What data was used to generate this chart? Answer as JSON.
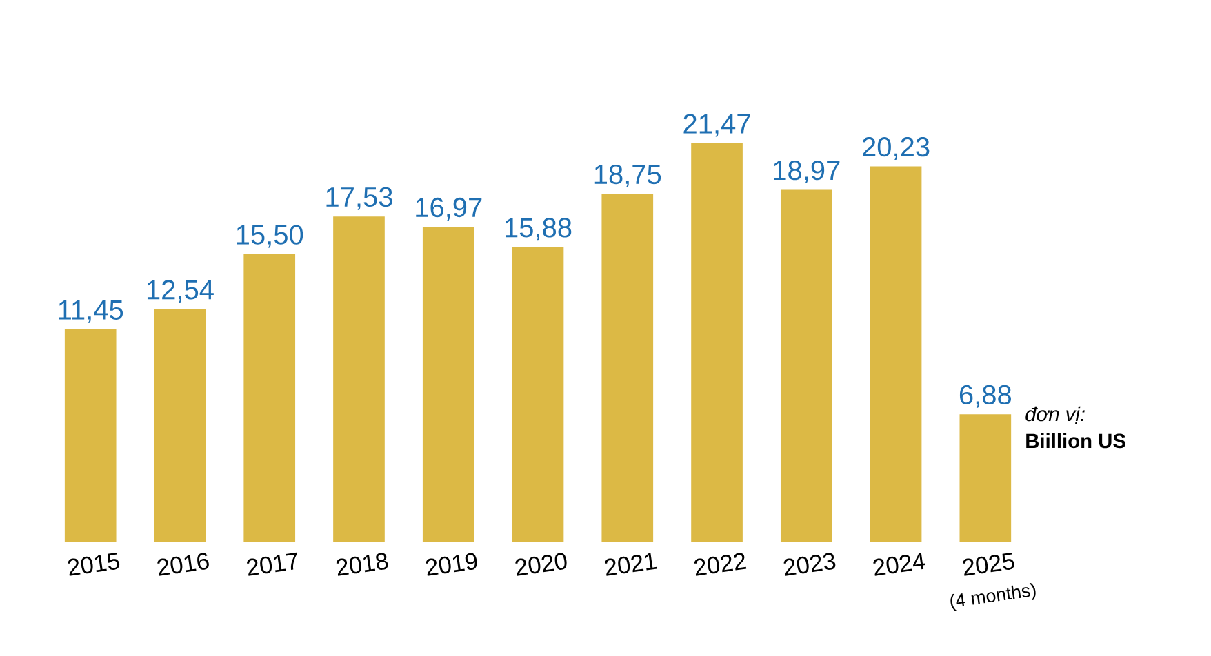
{
  "chart_data": {
    "type": "bar",
    "categories": [
      "2015",
      "2016",
      "2017",
      "2018",
      "2019",
      "2020",
      "2021",
      "2022",
      "2023",
      "2024",
      "2025"
    ],
    "values": [
      11.45,
      12.54,
      15.5,
      17.53,
      16.97,
      15.88,
      18.75,
      21.47,
      18.97,
      20.23,
      6.88
    ],
    "value_labels": [
      "11,45",
      "12,54",
      "15,50",
      "17,53",
      "16,97",
      "15,88",
      "18,75",
      "21,47",
      "18,97",
      "20,23",
      "6,88"
    ],
    "color": "#dcb945",
    "annotations": [
      "(4 months)",
      "*đơn vị:*",
      "**Biillion US**"
    ]
  }
}
